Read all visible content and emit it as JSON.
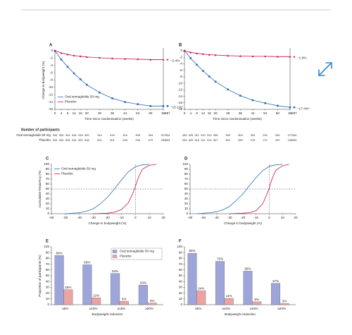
{
  "chart_data": [
    {
      "type": "line",
      "panel": "A",
      "ylabel": "Change in bodyweight (%)",
      "xlabel": "Time since randomisation (weeks)",
      "x": [
        0,
        4,
        8,
        12,
        16,
        20,
        28,
        36,
        44,
        52,
        60,
        68
      ],
      "xlim": [
        0,
        68
      ],
      "xticks": [
        0,
        4,
        8,
        12,
        16,
        20,
        28,
        36,
        44,
        52,
        60,
        68
      ],
      "end_tick_label": "68†",
      "ylim": [
        -16,
        0
      ],
      "yticks": [
        0,
        -2,
        -4,
        -6,
        -8,
        -10,
        -12,
        -14,
        -16
      ],
      "legend": "lower left",
      "series": [
        {
          "name": "Oral semaglutide 50 mg",
          "color": "#2c6cb3",
          "marker": "square",
          "values": [
            0,
            -2.4,
            -4.4,
            -6.2,
            -7.8,
            -9.3,
            -11.4,
            -13.0,
            -14.0,
            -14.6,
            -15.1,
            -15.1
          ],
          "end_value": -15.1,
          "end_label": "−15·1%*"
        },
        {
          "name": "Placebo",
          "color": "#c4134c",
          "marker": "triangle",
          "values": [
            0,
            -0.6,
            -1.0,
            -1.3,
            -1.5,
            -1.7,
            -1.9,
            -2.1,
            -2.2,
            -2.3,
            -2.4,
            -2.4
          ],
          "end_value": -2.4,
          "end_label": "−2·4%"
        }
      ]
    },
    {
      "type": "line",
      "panel": "B",
      "xlabel": "Time since randomisation (weeks)",
      "x": [
        0,
        4,
        8,
        12,
        16,
        20,
        28,
        36,
        44,
        52,
        60,
        68
      ],
      "xlim": [
        0,
        68
      ],
      "xticks": [
        0,
        4,
        8,
        12,
        16,
        20,
        28,
        36,
        44,
        52,
        60,
        68
      ],
      "end_tick_label": "68†",
      "ylim": [
        -18,
        0
      ],
      "yticks": [
        0,
        -2,
        -4,
        -6,
        -8,
        -10,
        -12,
        -14,
        -16,
        -18
      ],
      "series": [
        {
          "color": "#2c6cb3",
          "marker": "square",
          "values": [
            0,
            -2.3,
            -4.3,
            -6.2,
            -7.9,
            -9.5,
            -11.9,
            -13.8,
            -15.2,
            -16.1,
            -16.9,
            -17.4
          ],
          "end_value": -17.4,
          "end_label": "−17·4%*"
        },
        {
          "color": "#c4134c",
          "marker": "triangle",
          "values": [
            0,
            -0.5,
            -0.8,
            -1.0,
            -1.2,
            -1.3,
            -1.5,
            -1.6,
            -1.7,
            -1.7,
            -1.8,
            -1.8
          ],
          "end_value": -1.8,
          "end_label": "−1·8%"
        }
      ]
    },
    {
      "type": "line",
      "panel": "C",
      "ylabel": "Cumulative frequency (%)",
      "xlabel": "Change in bodyweight (%)",
      "xlim": [
        -60,
        20
      ],
      "xticks": [
        -60,
        -50,
        -40,
        -30,
        -20,
        -10,
        0,
        10,
        20
      ],
      "ylim": [
        0,
        100
      ],
      "yticks": [
        0,
        10,
        20,
        30,
        40,
        50,
        60,
        70,
        80,
        90,
        100
      ],
      "ref_x": 0,
      "ref_y": 50,
      "legend": "upper left",
      "series": [
        {
          "name": "Oral semaglutide 50 mg",
          "color": "#2c6cb3",
          "x": [
            -50,
            -40,
            -35,
            -30,
            -25,
            -20,
            -15,
            -10,
            -5,
            0,
            5,
            10
          ],
          "values": [
            0,
            2,
            5,
            10,
            20,
            33,
            50,
            68,
            85,
            95,
            99,
            100
          ]
        },
        {
          "name": "Placebo",
          "color": "#c4134c",
          "x": [
            -30,
            -20,
            -15,
            -10,
            -5,
            -2,
            0,
            2,
            5,
            10,
            15
          ],
          "values": [
            0,
            1,
            3,
            8,
            22,
            40,
            55,
            72,
            90,
            98,
            100
          ]
        }
      ]
    },
    {
      "type": "line",
      "panel": "D",
      "xlabel": "Change in bodyweight (%)",
      "xlim": [
        -60,
        20
      ],
      "xticks": [
        -60,
        -50,
        -40,
        -30,
        -20,
        -10,
        0,
        10,
        20
      ],
      "ylim": [
        0,
        100
      ],
      "yticks": [
        0,
        10,
        20,
        30,
        40,
        50,
        60,
        70,
        80,
        90,
        100
      ],
      "ref_x": 0,
      "ref_y": 50,
      "series": [
        {
          "color": "#2c6cb3",
          "x": [
            -55,
            -45,
            -40,
            -35,
            -30,
            -25,
            -20,
            -15,
            -10,
            -5,
            0,
            5,
            10
          ],
          "values": [
            0,
            2,
            4,
            8,
            15,
            27,
            40,
            57,
            73,
            87,
            96,
            99,
            100
          ]
        },
        {
          "color": "#c4134c",
          "x": [
            -30,
            -20,
            -15,
            -10,
            -5,
            -2,
            0,
            2,
            5,
            10,
            15
          ],
          "values": [
            0,
            1,
            2,
            6,
            20,
            38,
            52,
            70,
            88,
            97,
            100
          ]
        }
      ]
    },
    {
      "type": "bar",
      "panel": "E",
      "ylabel": "Proportion of participants (%)",
      "xlabel": "Bodyweight reduction",
      "categories": [
        "≥5%",
        "≥10%",
        "≥15%",
        "≥20%"
      ],
      "ylim": [
        0,
        100
      ],
      "yticks": [
        0,
        10,
        20,
        30,
        40,
        50,
        60,
        70,
        80,
        90,
        100
      ],
      "legend": "upper right",
      "series": [
        {
          "name": "Oral semaglutide 50 mg",
          "color": "#9ea5d9",
          "values": [
            85,
            69,
            54,
            34
          ],
          "value_labels": [
            "85%",
            "69%",
            "54%",
            "34%"
          ]
        },
        {
          "name": "Placebo",
          "color": "#eba3a3",
          "values": [
            26,
            12,
            6,
            3
          ],
          "value_labels": [
            "26%",
            "12%",
            "6%",
            "3%"
          ]
        }
      ]
    },
    {
      "type": "bar",
      "panel": "F",
      "xlabel": "Bodyweight reduction",
      "categories": [
        "≥5%",
        "≥10%",
        "≥15%",
        "≥20%"
      ],
      "ylim": [
        0,
        100
      ],
      "yticks": [
        0,
        10,
        20,
        30,
        40,
        50,
        60,
        70,
        80,
        90,
        100
      ],
      "series": [
        {
          "color": "#9ea5d9",
          "values": [
            89,
            75,
            58,
            37
          ],
          "value_labels": [
            "89%",
            "75%",
            "58%",
            "37%"
          ]
        },
        {
          "color": "#eba3a3",
          "values": [
            24,
            11,
            5,
            2
          ],
          "value_labels": [
            "24%",
            "11%",
            "5%",
            "2%"
          ]
        }
      ]
    }
  ],
  "participants": {
    "title": "Number of participants",
    "row_labels": [
      "Oral semaglutide 50 mg",
      "Placebo"
    ],
    "panels": [
      [
        [
          334,
          329,
          324,
          318,
          318,
          320,
          314,
          315,
          310,
          309,
          304,
          317,
          334
        ],
        [
          333,
          325,
          326,
          316,
          320,
          318,
          321,
          301,
          290,
          294,
          279,
          295,
          333
        ]
      ],
      [
        [
          334,
          325,
          311,
          310,
          310,
          306,
          302,
          303,
          293,
          291,
          281,
          277,
          334
        ],
        [
          333,
          325,
          316,
          311,
          314,
          307,
          301,
          289,
          276,
          271,
          257,
          245,
          333
        ]
      ]
    ]
  }
}
